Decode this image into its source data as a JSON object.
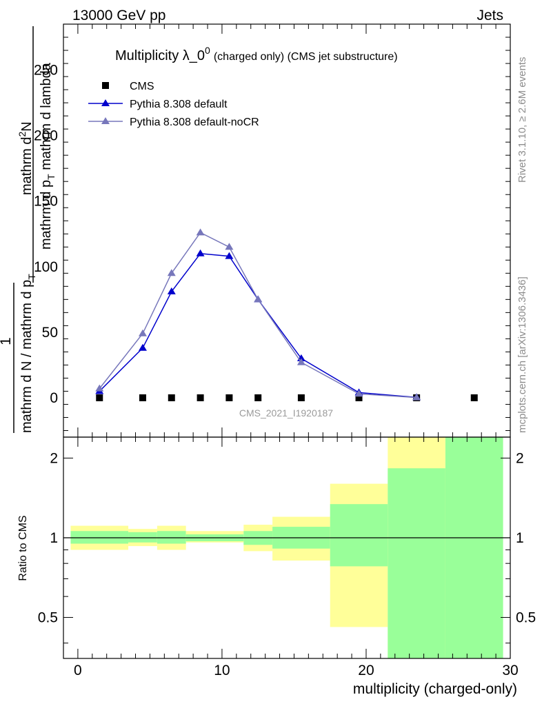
{
  "header": {
    "left": "13000 GeV pp",
    "right": "Jets"
  },
  "side_notes": {
    "rivet": "Rivet 3.1.10, ≥ 2.6M events",
    "mcplots": "mcplots.cern.ch [arXiv:1306.3436]"
  },
  "analysis_tag": "CMS_2021_I1920187",
  "chart_data": [
    {
      "type": "line",
      "title_main": "Multiplicity λ_0",
      "title_sup": "0",
      "title_sub": "(charged only) (CMS jet substructure)",
      "ylabel_numerator": "mathrm d",
      "ylabel_numerator_sup": "2",
      "ylabel_numerator_end": "N",
      "ylabel_denominator": "mathrm d p",
      "ylabel_denominator_sub": "T",
      "ylabel_denominator_end": " mathrm d lambda",
      "ylabel_prefix": "1",
      "ylabel_prefix_den": "mathrm d N / mathrm d p",
      "ylabel_prefix_den_sub": "T",
      "ylim": [
        -30,
        285
      ],
      "yticks": [
        "0",
        "50",
        "100",
        "150",
        "200",
        "250"
      ],
      "ytick_values": [
        0,
        50,
        100,
        150,
        200,
        250
      ],
      "xlim": [
        -1,
        30
      ],
      "legend_position": "top-left",
      "series": [
        {
          "name": "CMS",
          "style": "data",
          "color": "#000000",
          "x": [
            1.5,
            4.5,
            6.5,
            8.5,
            10.5,
            12.5,
            15.5,
            19.5,
            23.5,
            27.5
          ],
          "y": [
            0,
            0,
            0,
            0,
            0,
            0,
            0,
            0,
            0,
            0
          ]
        },
        {
          "name": "Pythia 8.308 default",
          "style": "line-triangle",
          "color": "#0000cc",
          "x": [
            1.5,
            4.5,
            6.5,
            8.5,
            10.5,
            12.5,
            15.5,
            19.5,
            23.5
          ],
          "y": [
            5,
            38,
            81,
            110,
            108,
            75,
            30,
            4,
            0.3
          ]
        },
        {
          "name": "Pythia 8.308 default-noCR",
          "style": "line-triangle",
          "color": "#7777bb",
          "x": [
            1.5,
            4.5,
            6.5,
            8.5,
            10.5,
            12.5,
            15.5,
            19.5,
            23.5
          ],
          "y": [
            7,
            49,
            95,
            126,
            115,
            75,
            27,
            3,
            0.2
          ]
        }
      ]
    },
    {
      "type": "area",
      "ylabel": "Ratio to CMS",
      "xlabel": "multiplicity (charged-only)",
      "log_y": true,
      "ylim": [
        0.35,
        2.4
      ],
      "yticks": [
        "0.5",
        "1",
        "2"
      ],
      "ytick_values": [
        0.5,
        1,
        2
      ],
      "xticks": [
        "0",
        "10",
        "20",
        "30"
      ],
      "xtick_values": [
        0,
        10,
        20,
        30
      ],
      "xlim": [
        -1,
        30
      ],
      "reference_line": 1,
      "bands": [
        {
          "x0": -0.5,
          "x1": 3.5,
          "stat_lo": 0.95,
          "stat_hi": 1.06,
          "tot_lo": 0.9,
          "tot_hi": 1.11
        },
        {
          "x0": 3.5,
          "x1": 5.5,
          "stat_lo": 0.96,
          "stat_hi": 1.05,
          "tot_lo": 0.93,
          "tot_hi": 1.08
        },
        {
          "x0": 5.5,
          "x1": 7.5,
          "stat_lo": 0.95,
          "stat_hi": 1.06,
          "tot_lo": 0.9,
          "tot_hi": 1.11
        },
        {
          "x0": 7.5,
          "x1": 9.5,
          "stat_lo": 0.97,
          "stat_hi": 1.03,
          "tot_lo": 0.96,
          "tot_hi": 1.06
        },
        {
          "x0": 9.5,
          "x1": 11.5,
          "stat_lo": 0.97,
          "stat_hi": 1.03,
          "tot_lo": 0.96,
          "tot_hi": 1.06
        },
        {
          "x0": 11.5,
          "x1": 13.5,
          "stat_lo": 0.94,
          "stat_hi": 1.06,
          "tot_lo": 0.89,
          "tot_hi": 1.12
        },
        {
          "x0": 13.5,
          "x1": 17.5,
          "stat_lo": 0.91,
          "stat_hi": 1.1,
          "tot_lo": 0.82,
          "tot_hi": 1.2
        },
        {
          "x0": 17.5,
          "x1": 21.5,
          "stat_lo": 0.78,
          "stat_hi": 1.34,
          "tot_lo": 0.46,
          "tot_hi": 1.6
        },
        {
          "x0": 21.5,
          "x1": 25.5,
          "stat_lo": 0.35,
          "stat_hi": 1.83,
          "tot_lo": 0.35,
          "tot_hi": 2.4
        },
        {
          "x0": 25.5,
          "x1": 29.5,
          "stat_lo": 0.35,
          "stat_hi": 2.4,
          "tot_lo": 0.35,
          "tot_hi": 2.4
        }
      ]
    }
  ],
  "colors": {
    "stat_band": "#99ff99",
    "total_band": "#ffff99",
    "data": "#000000",
    "mc1": "#0000cc",
    "mc2": "#7777bb"
  }
}
